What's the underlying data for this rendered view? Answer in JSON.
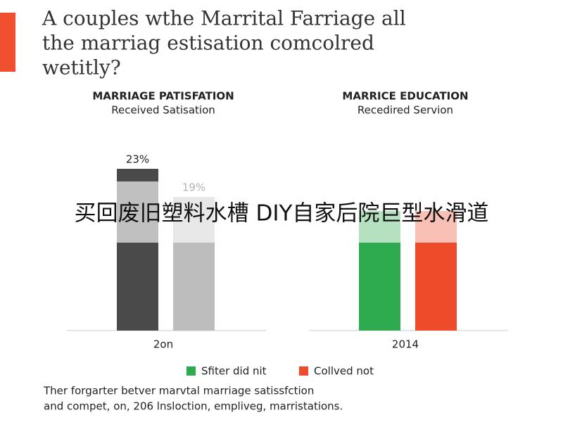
{
  "title_lines": [
    "A couples wthe Marrital Farriage all",
    "the marriag estisation comcolred",
    "wetitly?"
  ],
  "overlay_text": "买回废旧塑料水槽 DIY自家后院巨型水滑道",
  "caption_lines": [
    "Ther forgarter betver marvtal marriage satissfction",
    "and compet, on, 206 lnslоction, empliveg, marristations."
  ],
  "chart_data": [
    {
      "type": "bar",
      "title": "MARRIAGE PATISFATION",
      "subtitle": "Received Satisation",
      "categories": [
        "2on"
      ],
      "series": [
        {
          "color": "#4a4a4a",
          "values": [
            23
          ],
          "value_labels": [
            "23%"
          ]
        },
        {
          "color": "#bdbdbd",
          "values": [
            19
          ],
          "value_labels": [
            "19%"
          ]
        }
      ]
    },
    {
      "type": "bar",
      "title": "MARRICE EDUCATION",
      "subtitle": "Recedired Servion",
      "categories": [
        "2014"
      ],
      "series": [
        {
          "name": "Sfiter did nit",
          "color": "#2eaa4f",
          "values": [
            17
          ]
        },
        {
          "name": "Collved not",
          "color": "#ee4b2b",
          "values": [
            17
          ]
        }
      ]
    }
  ]
}
